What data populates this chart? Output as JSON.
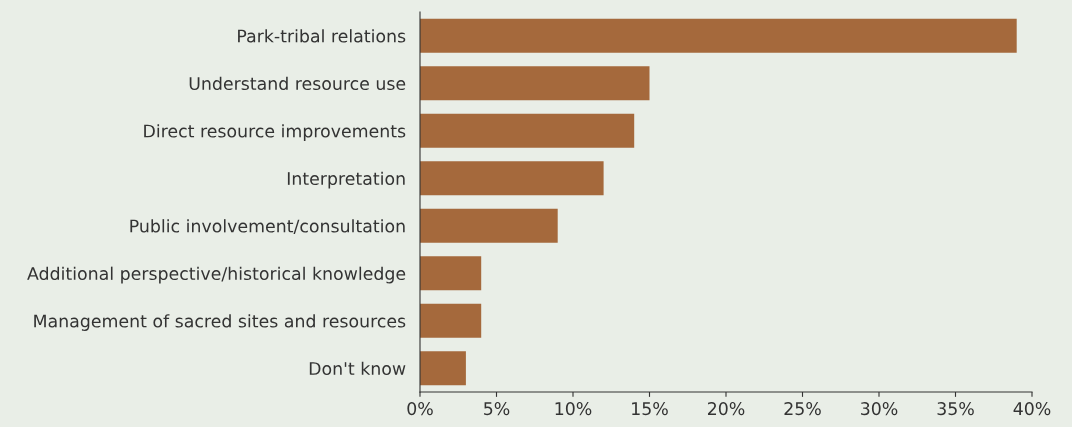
{
  "chart_data": {
    "type": "bar",
    "orientation": "horizontal",
    "categories": [
      "Park-tribal relations",
      "Understand resource use",
      "Direct resource improvements",
      "Interpretation",
      "Public involvement/consultation",
      "Additional perspective/historical knowledge",
      "Management of sacred sites and resources",
      "Don't know"
    ],
    "values": [
      39,
      15,
      14,
      12,
      9,
      4,
      4,
      3
    ],
    "color": "#a5693c",
    "xlim": [
      0,
      40
    ],
    "xticks": [
      {
        "value": 0,
        "label": "0%"
      },
      {
        "value": 5,
        "label": "5%"
      },
      {
        "value": 10,
        "label": "10%"
      },
      {
        "value": 15,
        "label": "15%"
      },
      {
        "value": 20,
        "label": "20%"
      },
      {
        "value": 25,
        "label": "25%"
      },
      {
        "value": 30,
        "label": "30%"
      },
      {
        "value": 35,
        "label": "35%"
      },
      {
        "value": 40,
        "label": "40%"
      }
    ],
    "grid": false
  }
}
